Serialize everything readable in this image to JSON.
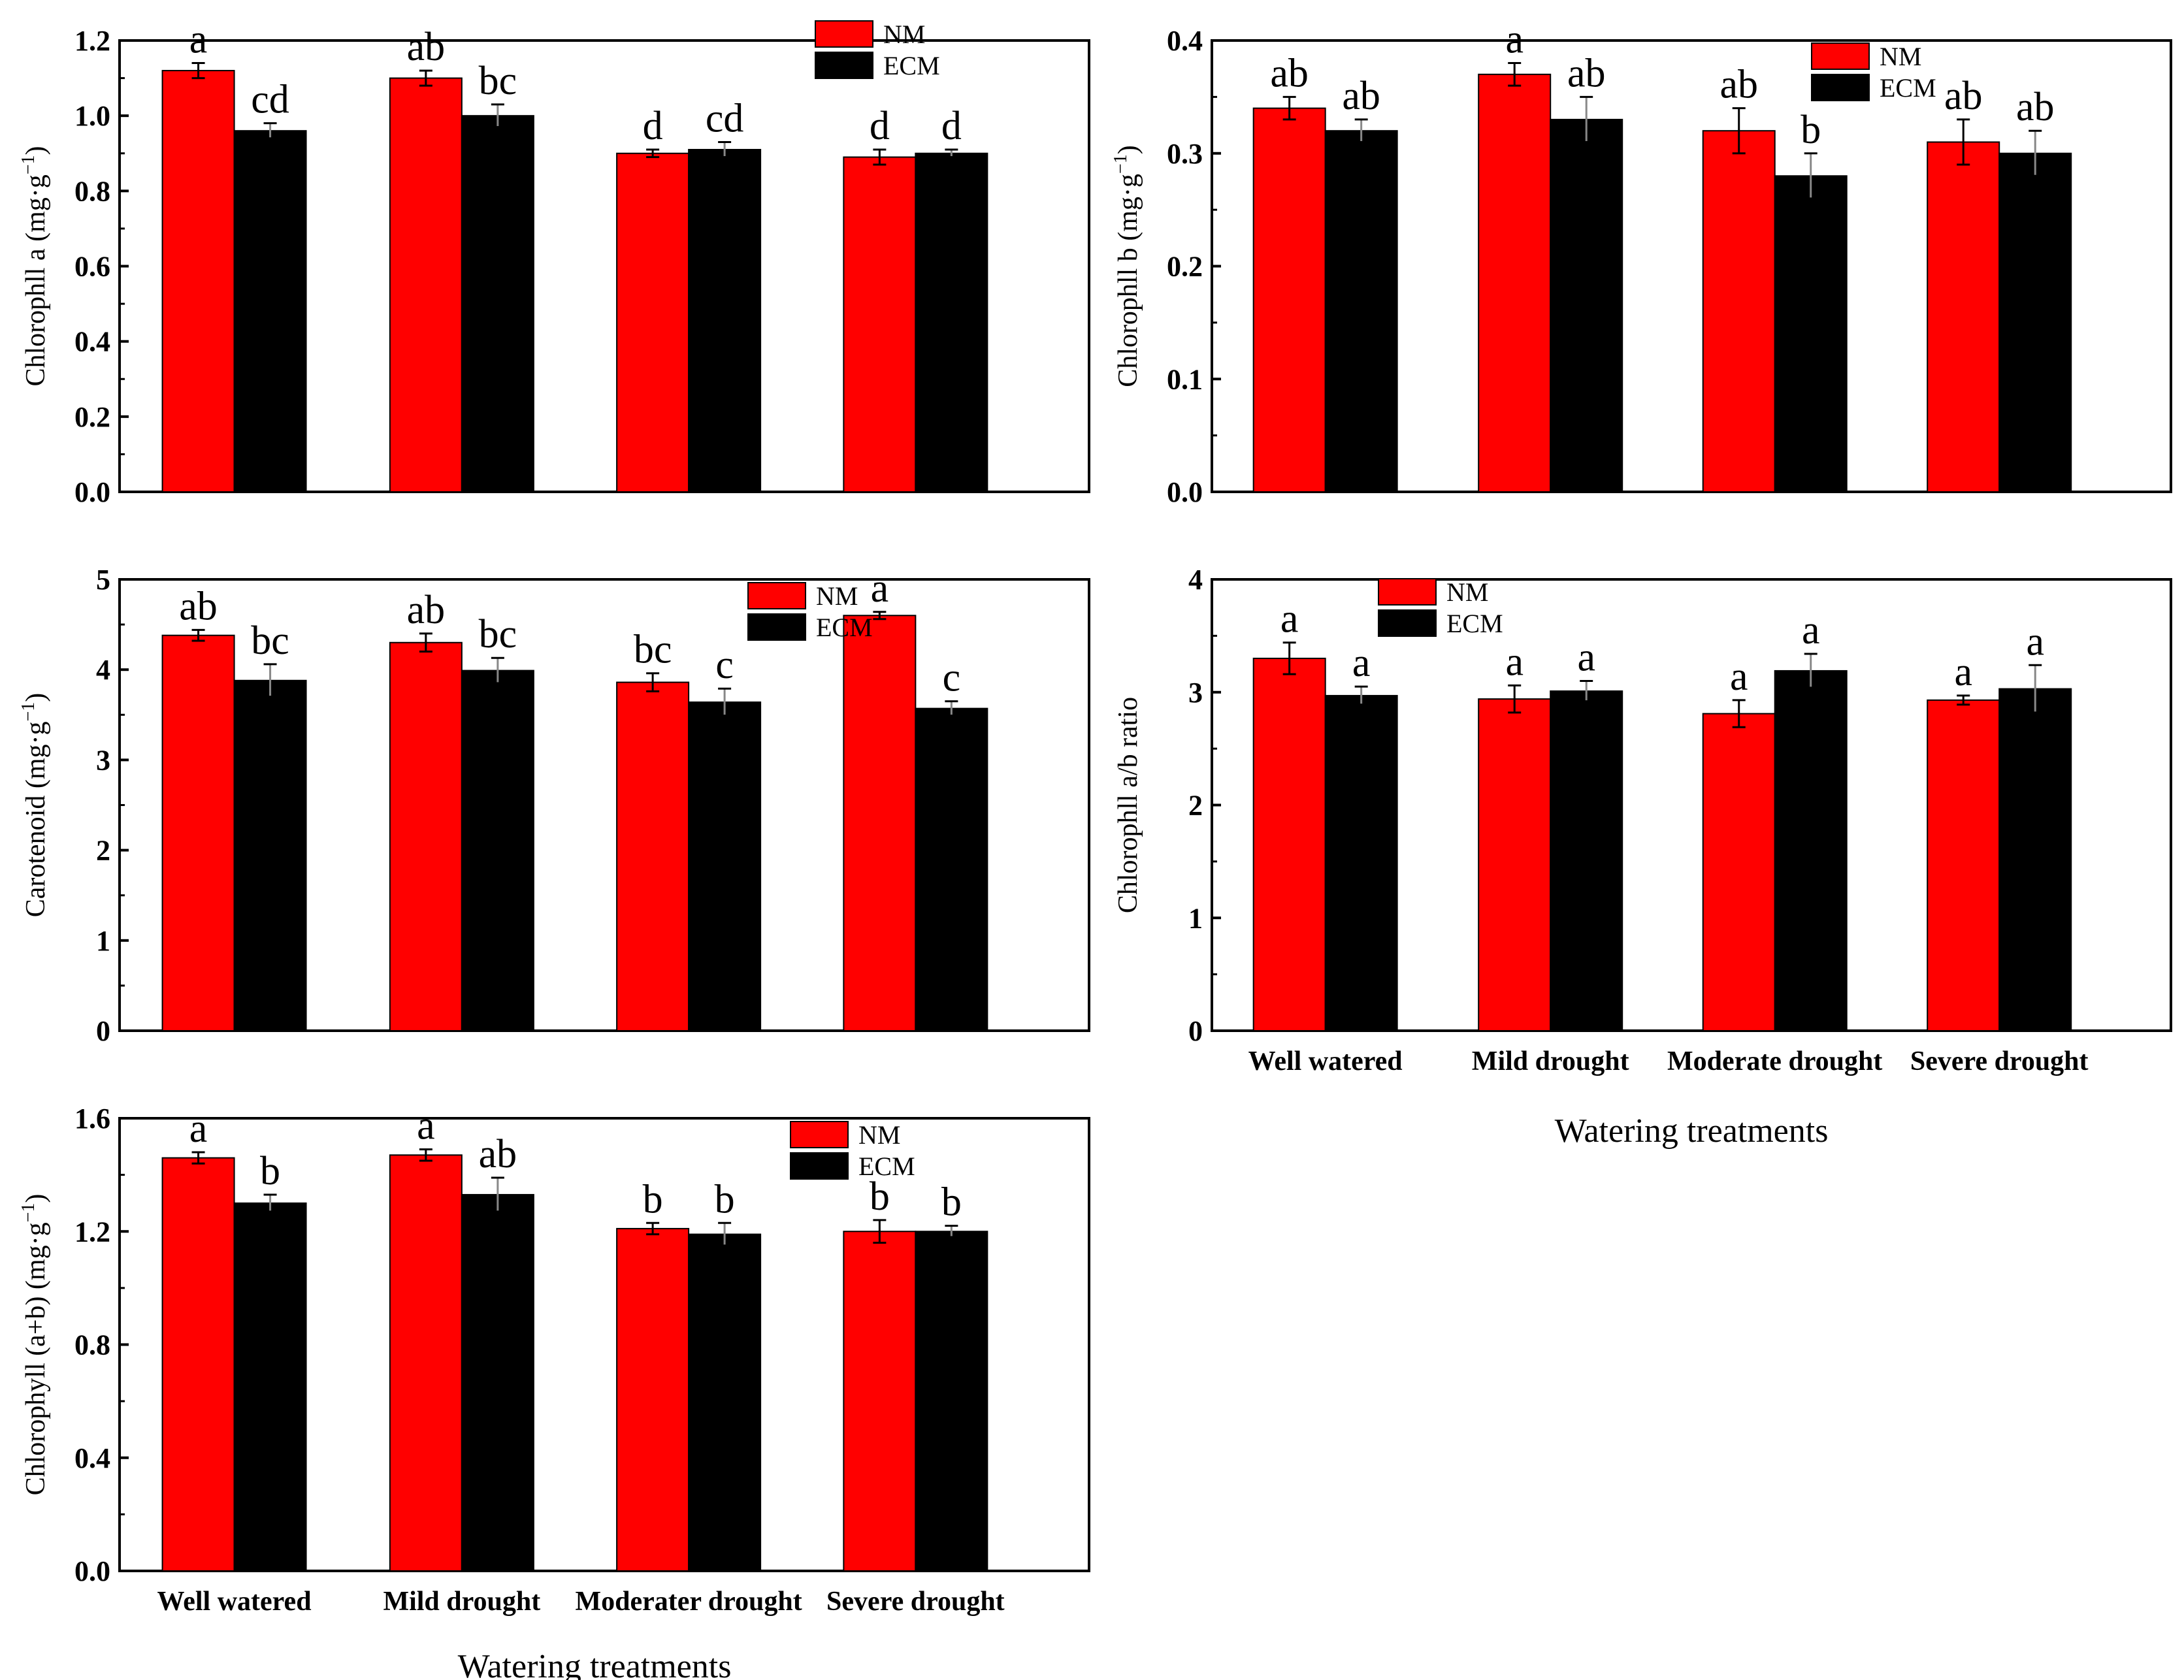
{
  "colors": {
    "nm": "#ff0000",
    "ecm": "#000000"
  },
  "chart_data": [
    {
      "type": "bar",
      "id": "chl-a",
      "ylabel": "Chlorophll a (mg·g⁻¹)",
      "ylabel_parts": [
        "Chlorophll a (mg·g",
        "−1",
        ")"
      ],
      "xlabel": "",
      "ylim": [
        0,
        1.2
      ],
      "yticks": [
        0.0,
        0.2,
        0.4,
        0.6,
        0.8,
        1.0,
        1.2
      ],
      "tick_labels": [
        "0.0",
        "0.2",
        "0.4",
        "0.6",
        "0.8",
        "1.0",
        "1.2"
      ],
      "categories": [
        "Well watered",
        "Mild drought",
        "Moderate drought",
        "Severe drought"
      ],
      "show_categories": false,
      "legend": "top-right",
      "series": [
        {
          "name": "NM",
          "values": [
            1.12,
            1.1,
            0.9,
            0.89
          ],
          "errors": [
            0.02,
            0.02,
            0.01,
            0.02
          ],
          "letters": [
            "a",
            "ab",
            "d",
            "d"
          ]
        },
        {
          "name": "ECM",
          "values": [
            0.96,
            1.0,
            0.91,
            0.9
          ],
          "errors": [
            0.02,
            0.03,
            0.02,
            0.01
          ],
          "letters": [
            "cd",
            "bc",
            "cd",
            "d"
          ]
        }
      ]
    },
    {
      "type": "bar",
      "id": "chl-b",
      "ylabel": "Chlorophll b (mg·g⁻¹)",
      "ylabel_parts": [
        "Chlorophll b (mg·g",
        "−1",
        ")"
      ],
      "xlabel": "",
      "ylim": [
        0,
        0.4
      ],
      "yticks": [
        0.0,
        0.1,
        0.2,
        0.3,
        0.4
      ],
      "tick_labels": [
        "0.0",
        "0.1",
        "0.2",
        "0.3",
        "0.4"
      ],
      "categories": [
        "Well watered",
        "Mild drought",
        "Moderate drought",
        "Severe drought"
      ],
      "show_categories": false,
      "legend": "top-right",
      "series": [
        {
          "name": "NM",
          "values": [
            0.34,
            0.37,
            0.32,
            0.31
          ],
          "errors": [
            0.01,
            0.01,
            0.02,
            0.02
          ],
          "letters": [
            "ab",
            "a",
            "ab",
            "ab"
          ]
        },
        {
          "name": "ECM",
          "values": [
            0.32,
            0.33,
            0.28,
            0.3
          ],
          "errors": [
            0.01,
            0.02,
            0.02,
            0.02
          ],
          "letters": [
            "ab",
            "ab",
            "b",
            "ab"
          ]
        }
      ]
    },
    {
      "type": "bar",
      "id": "carotenoid",
      "ylabel": "Carotenoid (mg·g⁻¹)",
      "ylabel_parts": [
        "Carotenoid (mg·g",
        "−1",
        ")"
      ],
      "xlabel": "",
      "ylim": [
        0,
        5
      ],
      "yticks": [
        0,
        1,
        2,
        3,
        4,
        5
      ],
      "tick_labels": [
        "0",
        "1",
        "2",
        "3",
        "4",
        "5"
      ],
      "categories": [
        "Well watered",
        "Mild drought",
        "Moderate drought",
        "Severe drought"
      ],
      "show_categories": false,
      "legend": "top-right",
      "series": [
        {
          "name": "NM",
          "values": [
            4.38,
            4.3,
            3.86,
            4.6
          ],
          "errors": [
            0.06,
            0.1,
            0.1,
            0.04
          ],
          "letters": [
            "ab",
            "ab",
            "bc",
            "a"
          ]
        },
        {
          "name": "ECM",
          "values": [
            3.88,
            3.99,
            3.64,
            3.57
          ],
          "errors": [
            0.18,
            0.14,
            0.15,
            0.08
          ],
          "letters": [
            "bc",
            "bc",
            "c",
            "c"
          ]
        }
      ]
    },
    {
      "type": "bar",
      "id": "chl-ab-ratio",
      "ylabel": "Chlorophll  a/b ratio",
      "ylabel_parts": [
        "Chlorophll  a/b ratio",
        "",
        ""
      ],
      "xlabel": "Watering treatments",
      "ylim": [
        0,
        4
      ],
      "yticks": [
        0,
        1,
        2,
        3,
        4
      ],
      "tick_labels": [
        "0",
        "1",
        "2",
        "3",
        "4"
      ],
      "categories": [
        "Well watered",
        "Mild drought",
        "Moderate drought",
        "Severe drought"
      ],
      "show_categories": true,
      "legend": "top-left",
      "series": [
        {
          "name": "NM",
          "values": [
            3.3,
            2.94,
            2.81,
            2.93
          ],
          "errors": [
            0.14,
            0.12,
            0.12,
            0.04
          ],
          "letters": [
            "a",
            "a",
            "a",
            "a"
          ]
        },
        {
          "name": "ECM",
          "values": [
            2.97,
            3.01,
            3.19,
            3.03
          ],
          "errors": [
            0.08,
            0.09,
            0.15,
            0.21
          ],
          "letters": [
            "a",
            "a",
            "a",
            "a"
          ]
        }
      ]
    },
    {
      "type": "bar",
      "id": "chl-total",
      "ylabel": "Chlorophyll (a+b) (mg·g⁻¹)",
      "ylabel_parts": [
        "Chlorophyll (a+b) (mg·g",
        "−1",
        ")"
      ],
      "xlabel": "Watering treatments",
      "ylim": [
        0,
        1.6
      ],
      "yticks": [
        0.0,
        0.4,
        0.8,
        1.2,
        1.6
      ],
      "tick_labels": [
        "0.0",
        "0.4",
        "0.8",
        "1.2",
        "1.6"
      ],
      "categories": [
        "Well watered",
        "Mild drought",
        "Moderater drought",
        "Severe drought"
      ],
      "show_categories": true,
      "legend": "top-right",
      "series": [
        {
          "name": "NM",
          "values": [
            1.46,
            1.47,
            1.21,
            1.2
          ],
          "errors": [
            0.02,
            0.02,
            0.02,
            0.04
          ],
          "letters": [
            "a",
            "a",
            "b",
            "b"
          ]
        },
        {
          "name": "ECM",
          "values": [
            1.3,
            1.33,
            1.19,
            1.2
          ],
          "errors": [
            0.03,
            0.06,
            0.04,
            0.02
          ],
          "letters": [
            "b",
            "ab",
            "b",
            "b"
          ]
        }
      ]
    }
  ]
}
